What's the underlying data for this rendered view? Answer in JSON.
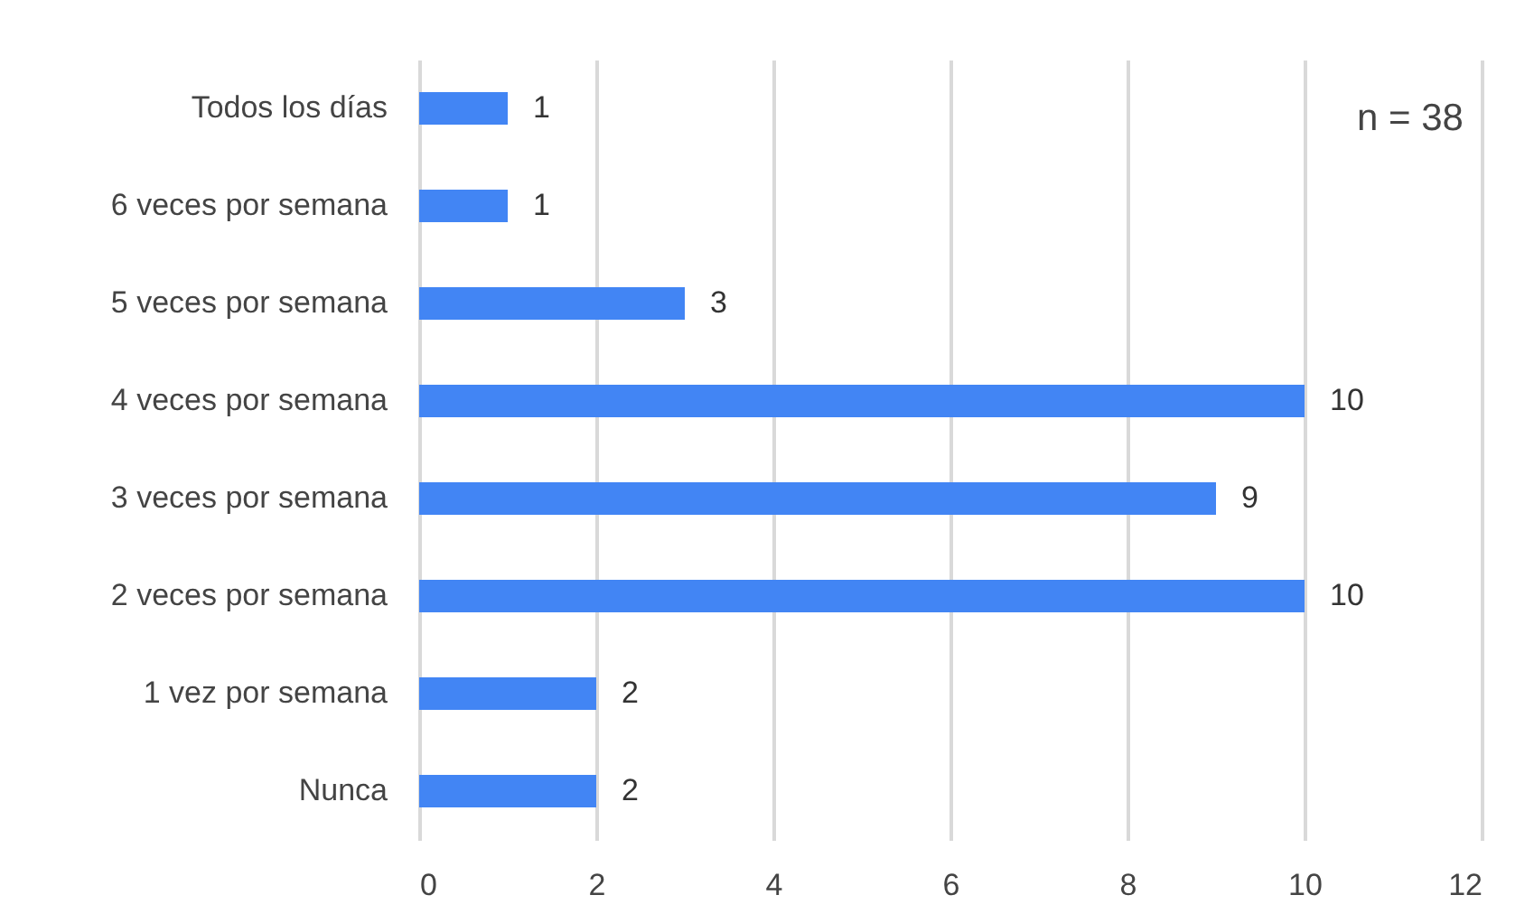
{
  "chart_data": {
    "type": "bar",
    "orientation": "horizontal",
    "categories": [
      "Todos los días",
      "6 veces por semana",
      "5 veces por semana",
      "4 veces por semana",
      "3 veces por semana",
      "2 veces por semana",
      "1 vez por semana",
      "Nunca"
    ],
    "values": [
      1,
      1,
      3,
      10,
      9,
      10,
      2,
      2
    ],
    "color": "#4285f4",
    "xlim": [
      0,
      12
    ],
    "xticks": [
      0,
      2,
      4,
      6,
      8,
      10,
      12
    ],
    "grid": "x",
    "data_labels": true,
    "annotations": [
      "n = 38"
    ]
  }
}
